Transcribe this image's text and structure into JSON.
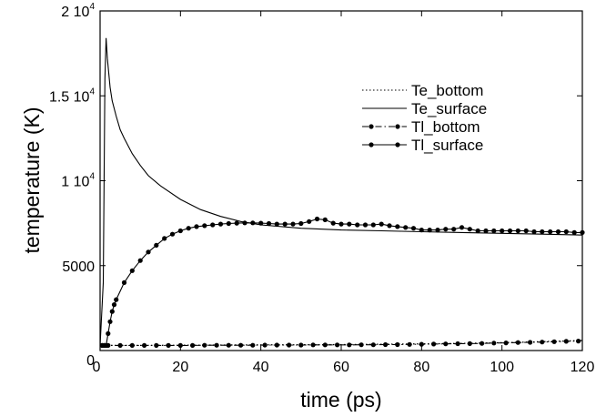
{
  "chart_data": {
    "type": "line",
    "title": "",
    "xlabel": "time (ps)",
    "ylabel": "temperature (K)",
    "xlim": [
      0,
      120
    ],
    "ylim": [
      0,
      20000
    ],
    "grid": false,
    "legend_position": "right",
    "x_ticks": [
      {
        "value": 0,
        "label": "0"
      },
      {
        "value": 20,
        "label": "20"
      },
      {
        "value": 40,
        "label": "40"
      },
      {
        "value": 60,
        "label": "60"
      },
      {
        "value": 80,
        "label": "80"
      },
      {
        "value": 100,
        "label": "100"
      },
      {
        "value": 120,
        "label": "120"
      }
    ],
    "y_ticks": [
      {
        "value": 0,
        "label": "0",
        "exp": ""
      },
      {
        "value": 5000,
        "label": "5000",
        "exp": ""
      },
      {
        "value": 10000,
        "label": "1 10",
        "exp": "4"
      },
      {
        "value": 15000,
        "label": "1.5 10",
        "exp": "4"
      },
      {
        "value": 20000,
        "label": "2 10",
        "exp": "4"
      }
    ],
    "series": [
      {
        "name": "Te_bottom",
        "style": "dotted",
        "marker": false,
        "points": [
          [
            0,
            300
          ],
          [
            10,
            300
          ],
          [
            20,
            310
          ],
          [
            30,
            320
          ],
          [
            40,
            330
          ],
          [
            50,
            340
          ],
          [
            60,
            350
          ],
          [
            70,
            370
          ],
          [
            80,
            390
          ],
          [
            90,
            420
          ],
          [
            100,
            460
          ],
          [
            110,
            520
          ],
          [
            120,
            590
          ]
        ]
      },
      {
        "name": "Te_surface",
        "style": "solid",
        "marker": false,
        "points": [
          [
            0,
            300
          ],
          [
            0.8,
            4000
          ],
          [
            1.2,
            16000
          ],
          [
            1.5,
            18400
          ],
          [
            1.8,
            17200
          ],
          [
            2.5,
            15500
          ],
          [
            3,
            14700
          ],
          [
            4,
            13800
          ],
          [
            5,
            13000
          ],
          [
            6,
            12500
          ],
          [
            8,
            11600
          ],
          [
            10,
            10900
          ],
          [
            12,
            10300
          ],
          [
            15,
            9700
          ],
          [
            20,
            8900
          ],
          [
            25,
            8300
          ],
          [
            30,
            7900
          ],
          [
            35,
            7600
          ],
          [
            40,
            7400
          ],
          [
            50,
            7200
          ],
          [
            60,
            7100
          ],
          [
            70,
            7050
          ],
          [
            80,
            7000
          ],
          [
            90,
            6950
          ],
          [
            100,
            6900
          ],
          [
            110,
            6850
          ],
          [
            120,
            6800
          ]
        ]
      },
      {
        "name": "Tl_bottom",
        "style": "dashdot",
        "marker": true,
        "points": [
          [
            0.5,
            300
          ],
          [
            1,
            300
          ],
          [
            1.5,
            300
          ],
          [
            2,
            300
          ],
          [
            5,
            300
          ],
          [
            8,
            300
          ],
          [
            11,
            300
          ],
          [
            14,
            300
          ],
          [
            17,
            300
          ],
          [
            20,
            300
          ],
          [
            23,
            300
          ],
          [
            26,
            310
          ],
          [
            29,
            310
          ],
          [
            32,
            310
          ],
          [
            35,
            310
          ],
          [
            38,
            310
          ],
          [
            41,
            320
          ],
          [
            44,
            320
          ],
          [
            47,
            320
          ],
          [
            50,
            320
          ],
          [
            53,
            330
          ],
          [
            56,
            330
          ],
          [
            59,
            330
          ],
          [
            62,
            330
          ],
          [
            65,
            340
          ],
          [
            68,
            340
          ],
          [
            71,
            350
          ],
          [
            74,
            350
          ],
          [
            77,
            360
          ],
          [
            80,
            370
          ],
          [
            83,
            380
          ],
          [
            86,
            390
          ],
          [
            89,
            400
          ],
          [
            92,
            410
          ],
          [
            95,
            420
          ],
          [
            98,
            440
          ],
          [
            101,
            450
          ],
          [
            104,
            470
          ],
          [
            107,
            480
          ],
          [
            110,
            500
          ],
          [
            113,
            520
          ],
          [
            116,
            540
          ],
          [
            119,
            560
          ]
        ]
      },
      {
        "name": "Tl_surface",
        "style": "solid",
        "marker": true,
        "points": [
          [
            0.5,
            300
          ],
          [
            1,
            300
          ],
          [
            1.5,
            300
          ],
          [
            2,
            1000
          ],
          [
            2.5,
            1700
          ],
          [
            3,
            2300
          ],
          [
            3.5,
            2700
          ],
          [
            4,
            3000
          ],
          [
            6,
            4000
          ],
          [
            8,
            4700
          ],
          [
            10,
            5300
          ],
          [
            12,
            5800
          ],
          [
            14,
            6200
          ],
          [
            16,
            6600
          ],
          [
            18,
            6850
          ],
          [
            20,
            7050
          ],
          [
            22,
            7200
          ],
          [
            24,
            7300
          ],
          [
            26,
            7350
          ],
          [
            28,
            7400
          ],
          [
            30,
            7450
          ],
          [
            32,
            7480
          ],
          [
            34,
            7500
          ],
          [
            36,
            7520
          ],
          [
            38,
            7520
          ],
          [
            40,
            7500
          ],
          [
            42,
            7480
          ],
          [
            44,
            7450
          ],
          [
            46,
            7450
          ],
          [
            48,
            7450
          ],
          [
            50,
            7480
          ],
          [
            52,
            7600
          ],
          [
            54,
            7750
          ],
          [
            56,
            7700
          ],
          [
            58,
            7500
          ],
          [
            60,
            7450
          ],
          [
            62,
            7450
          ],
          [
            64,
            7400
          ],
          [
            66,
            7400
          ],
          [
            68,
            7400
          ],
          [
            70,
            7450
          ],
          [
            72,
            7350
          ],
          [
            74,
            7300
          ],
          [
            76,
            7250
          ],
          [
            78,
            7200
          ],
          [
            80,
            7100
          ],
          [
            82,
            7100
          ],
          [
            84,
            7100
          ],
          [
            86,
            7150
          ],
          [
            88,
            7150
          ],
          [
            90,
            7250
          ],
          [
            92,
            7150
          ],
          [
            94,
            7050
          ],
          [
            96,
            7050
          ],
          [
            98,
            7050
          ],
          [
            100,
            7050
          ],
          [
            102,
            7050
          ],
          [
            104,
            7050
          ],
          [
            106,
            7050
          ],
          [
            108,
            7000
          ],
          [
            110,
            7000
          ],
          [
            112,
            7000
          ],
          [
            114,
            7000
          ],
          [
            116,
            7000
          ],
          [
            118,
            6950
          ],
          [
            120,
            6950
          ]
        ]
      }
    ]
  }
}
